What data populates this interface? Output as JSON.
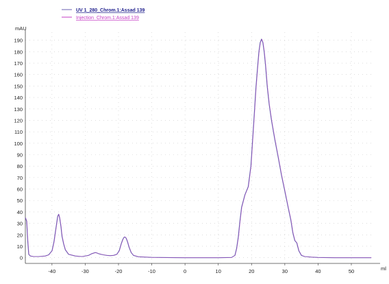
{
  "chart_data": {
    "type": "line",
    "title": "",
    "xlabel": "ml",
    "ylabel": "mAU",
    "xlim": [
      -48,
      57
    ],
    "ylim": [
      -5,
      197
    ],
    "x_ticks": [
      -40,
      -30,
      -20,
      -10,
      0,
      10,
      20,
      30,
      40,
      50
    ],
    "y_ticks": [
      0,
      10,
      20,
      30,
      40,
      50,
      60,
      70,
      80,
      90,
      100,
      110,
      120,
      130,
      140,
      150,
      160,
      170,
      180,
      190
    ],
    "grid": true,
    "legend_position": "top-left",
    "legend": [
      {
        "label": "UV 1_280_Chrom.1:Assad 139",
        "color": "#1e1e8c"
      },
      {
        "label": "Injection_Chrom.1:Assad 139",
        "color": "#c43cc4"
      }
    ],
    "series": [
      {
        "name": "UV 1_280_Chrom.1:Assad 139",
        "color": "#6a5fb0",
        "x": [
          -48,
          -47.6,
          -47.3,
          -47,
          -46.5,
          -45.5,
          -44,
          -42,
          -41,
          -40,
          -39.4,
          -38.9,
          -38.6,
          -38.3,
          -38,
          -37.7,
          -37.3,
          -37,
          -36.5,
          -36,
          -35,
          -33,
          -31,
          -29,
          -28,
          -27,
          -26.5,
          -26,
          -25.3,
          -24.5,
          -23.5,
          -22.5,
          -21.5,
          -20.5,
          -19.8,
          -19.2,
          -18.7,
          -18.3,
          -18,
          -17.7,
          -17.3,
          -16.8,
          -16.2,
          -15.5,
          -14,
          -10,
          0,
          10,
          14,
          15,
          15.5,
          16,
          16.5,
          17,
          18,
          19,
          19.8,
          20.3,
          20.8,
          21.3,
          21.8,
          22.2,
          22.6,
          23,
          23.4,
          23.8,
          24.2,
          24.7,
          25.3,
          26,
          27,
          28,
          29,
          30,
          31,
          31.8,
          32.4,
          33,
          33.6,
          34.2,
          35,
          36,
          38,
          40,
          45,
          50,
          56
        ],
        "values": [
          35,
          32,
          15,
          3,
          1.5,
          1,
          1,
          1.5,
          2.5,
          6,
          14,
          24,
          30,
          36,
          38,
          35,
          27,
          19,
          12,
          7,
          3,
          1.5,
          1,
          2,
          3.5,
          4.5,
          4.2,
          3.5,
          3,
          2.5,
          2,
          1.8,
          2,
          3,
          6,
          12,
          16,
          18,
          18,
          17,
          14,
          9,
          4.5,
          2,
          0.8,
          0.3,
          0,
          0,
          0.2,
          2,
          8,
          18,
          32,
          44,
          55,
          62,
          80,
          102,
          125,
          148,
          166,
          180,
          188,
          191,
          188,
          180,
          168,
          150,
          134,
          120,
          103,
          88,
          72,
          58,
          44,
          33,
          22,
          15,
          13,
          6,
          2,
          1,
          0.5,
          0.2,
          0,
          0,
          0
        ]
      },
      {
        "name": "Injection_Chrom.1:Assad 139",
        "color": "#c43cc4",
        "x": [],
        "values": []
      }
    ]
  }
}
